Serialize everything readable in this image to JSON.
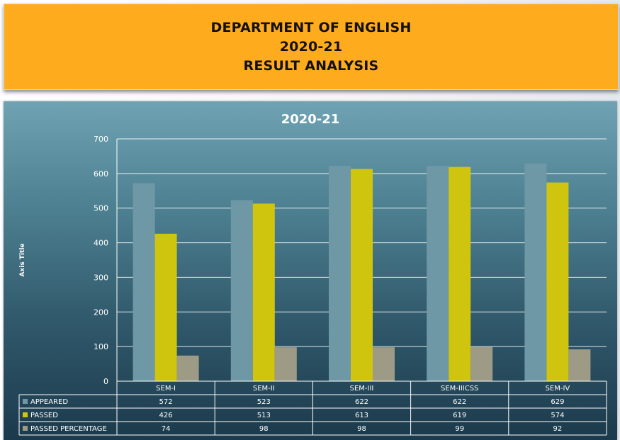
{
  "banner": {
    "line1": "DEPARTMENT OF ENGLISH",
    "line2": "2020-21",
    "line3": "RESULT ANALYSIS"
  },
  "chart_data": {
    "type": "bar",
    "title": "2020-21",
    "ylabel": "Axis Title",
    "xlabel": "",
    "ylim": [
      0,
      700
    ],
    "yticks": [
      0,
      100,
      200,
      300,
      400,
      500,
      600,
      700
    ],
    "grid": true,
    "legend": "data-table",
    "categories": [
      "SEM-I",
      "SEM-II",
      "SEM-III",
      "SEM-IIICSS",
      "SEM-IV"
    ],
    "series": [
      {
        "name": "APPEARED",
        "color": "#6f98a6",
        "values": [
          572,
          523,
          622,
          622,
          629
        ]
      },
      {
        "name": "PASSED",
        "color": "#cfc50e",
        "values": [
          426,
          513,
          613,
          619,
          574
        ]
      },
      {
        "name": "PASSED PERCENTAGE",
        "color": "#9d9a85",
        "values": [
          74,
          98,
          98,
          99,
          92
        ]
      }
    ]
  }
}
